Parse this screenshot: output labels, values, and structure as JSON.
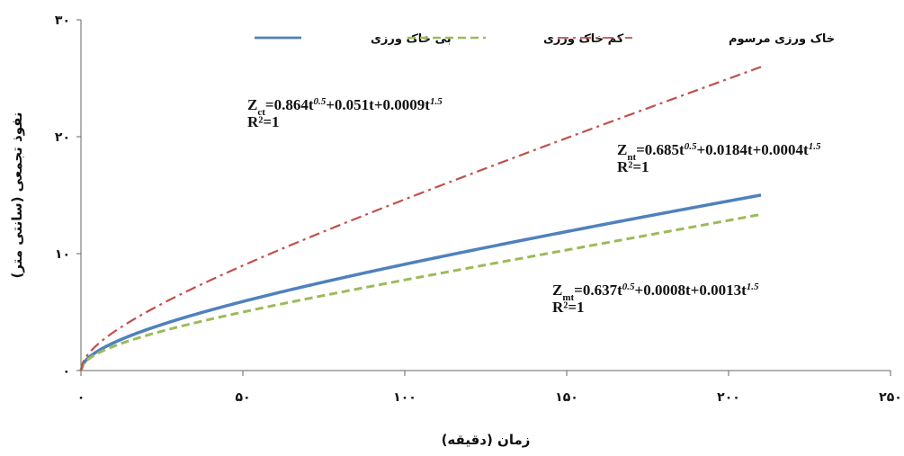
{
  "chart_data": {
    "type": "line",
    "xlabel": "زمان (دقیقه)",
    "ylabel": "نفوذ تجمعی (سانتی متر)",
    "xlim": [
      0,
      250
    ],
    "ylim": [
      0,
      30
    ],
    "xticks": [
      0,
      50,
      100,
      150,
      200,
      250
    ],
    "xtick_labels": [
      "۰",
      "۵۰",
      "۱۰۰",
      "۱۵۰",
      "۲۰۰",
      "۲۵۰"
    ],
    "yticks": [
      0,
      10,
      20,
      30
    ],
    "ytick_labels": [
      "۰",
      "۱۰",
      "۲۰",
      "۳۰"
    ],
    "grid": false,
    "legend_position": "top",
    "series": [
      {
        "name": "بی خاک ورزی",
        "color": "#4f81bd",
        "dash": "solid",
        "formula": {
          "a": 0.685,
          "b": 0.0184,
          "c": 0.0004
        },
        "x_max": 210,
        "equation": {
          "lhs": "Z",
          "sub": "nt",
          "text": "=0.685t^0.5+0.0184t+0.0004t^1.5",
          "r2": "R²=1"
        }
      },
      {
        "name": "کم خاک ورزی",
        "color": "#9bbb59",
        "dash": "dashed",
        "formula": {
          "a": 0.637,
          "b": 0.0008,
          "c": 0.0013
        },
        "x_max": 210,
        "equation": {
          "lhs": "Z",
          "sub": "mt",
          "text": "=0.637t^0.5+0.0008t+0.0013t^1.5",
          "r2": "R²=1"
        }
      },
      {
        "name": "خاک ورزی مرسوم",
        "color": "#c0504d",
        "dash": "dashdot",
        "formula": {
          "a": 0.864,
          "b": 0.051,
          "c": 0.0009
        },
        "x_max": 210,
        "equation": {
          "lhs": "Z",
          "sub": "ct",
          "text": "=0.864t^0.5+0.051t+0.0009t^1.5",
          "r2": "R²=1"
        }
      }
    ]
  }
}
